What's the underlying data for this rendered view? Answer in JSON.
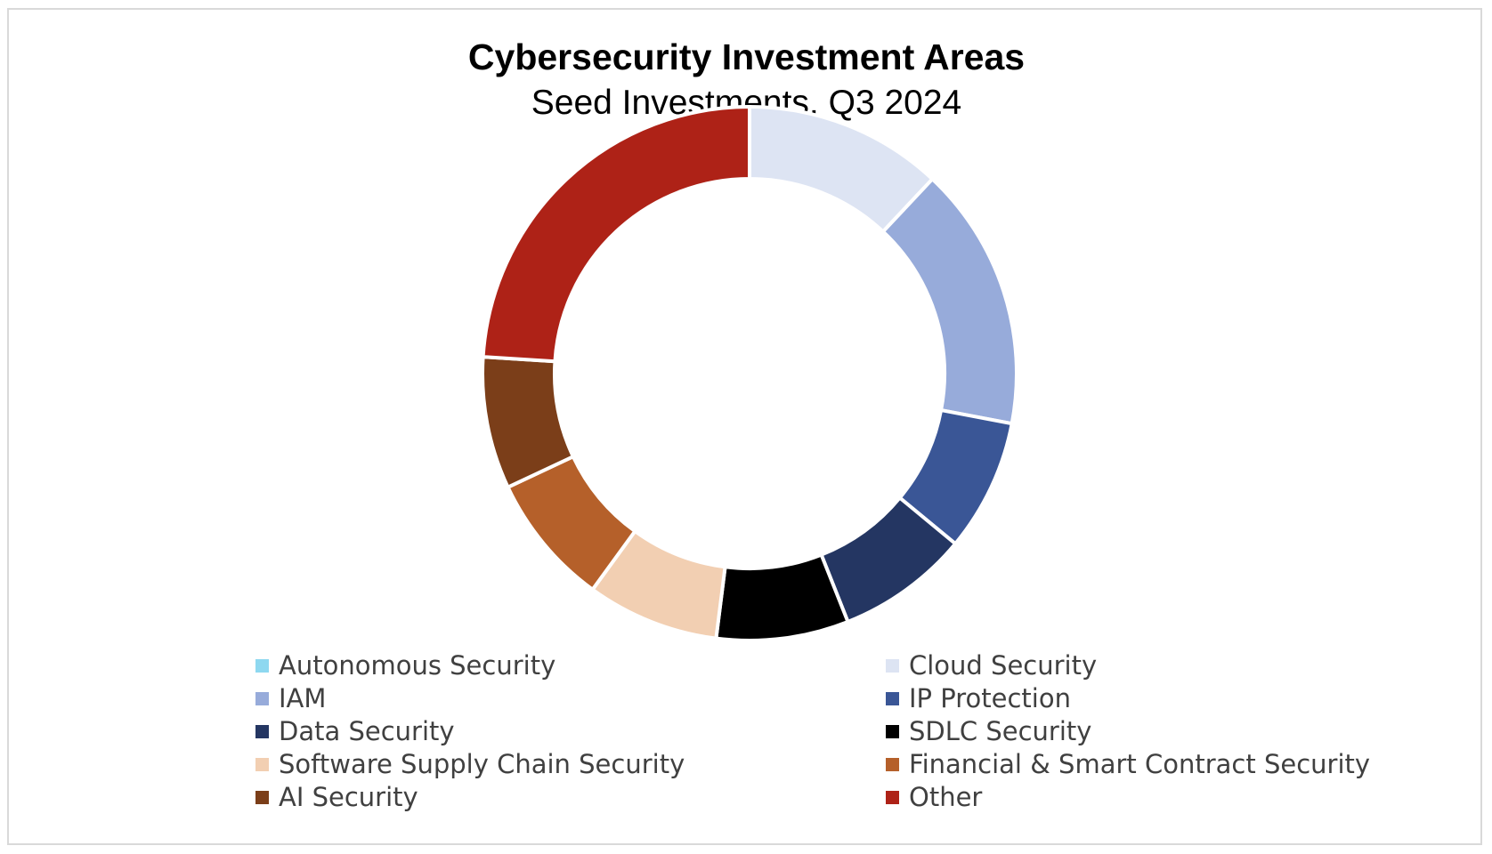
{
  "chart_data": {
    "type": "donut",
    "title": "Cybersecurity Investment Areas",
    "subtitle": "Seed Investments, Q3 2024",
    "legend_position": "bottom",
    "series": [
      {
        "name": "Autonomous Security",
        "value": 0,
        "color": "#8ED8F0"
      },
      {
        "name": "Cloud Security",
        "value": 12,
        "color": "#DDE4F3"
      },
      {
        "name": "IAM",
        "value": 16,
        "color": "#97ABDA"
      },
      {
        "name": "IP Protection",
        "value": 8,
        "color": "#3A5696"
      },
      {
        "name": "Data Security",
        "value": 8,
        "color": "#243662"
      },
      {
        "name": "SDLC Security",
        "value": 8,
        "color": "#000000"
      },
      {
        "name": "Software Supply Chain Security",
        "value": 8,
        "color": "#F2CFB2"
      },
      {
        "name": "Financial & Smart Contract Security",
        "value": 8,
        "color": "#B5602A"
      },
      {
        "name": "AI Security",
        "value": 8,
        "color": "#7B3E19"
      },
      {
        "name": "Other",
        "value": 24,
        "color": "#AE2217"
      }
    ]
  }
}
